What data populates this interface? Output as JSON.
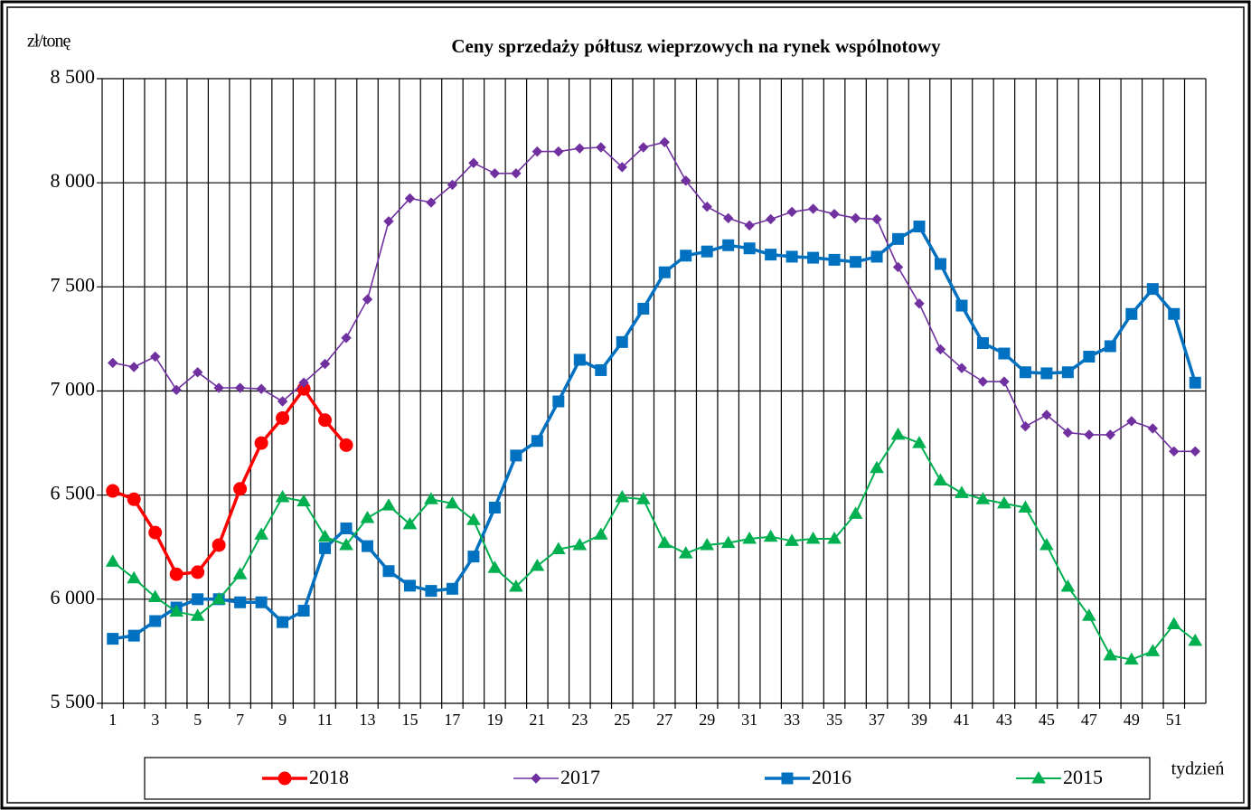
{
  "chart_data": {
    "type": "line",
    "title": "Ceny sprzedaży półtusz wieprzowych  na rynek wspólnotowy",
    "y_label": "zł/tonę",
    "x_label": "tydzień",
    "categories": [
      "1",
      null,
      "3",
      null,
      "5",
      null,
      "7",
      null,
      "9",
      null,
      "11",
      null,
      "13",
      null,
      "15",
      null,
      "17",
      null,
      "19",
      null,
      "21",
      null,
      "23",
      null,
      "25",
      null,
      "27",
      null,
      "29",
      null,
      "31",
      null,
      "33",
      null,
      "35",
      null,
      "37",
      null,
      "39",
      null,
      "41",
      null,
      "43",
      null,
      "45",
      null,
      "47",
      null,
      "49",
      null,
      "51",
      null
    ],
    "ylim": [
      5500,
      8500
    ],
    "yticks": [
      {
        "value": 5500,
        "label": "5 500"
      },
      {
        "value": 6000,
        "label": "6 000"
      },
      {
        "value": 6500,
        "label": "6 500"
      },
      {
        "value": 7000,
        "label": "7 000"
      },
      {
        "value": 7500,
        "label": "7 500"
      },
      {
        "value": 8000,
        "label": "8 000"
      },
      {
        "value": 8500,
        "label": "8 500"
      }
    ],
    "grid": true,
    "legend": "bottom",
    "series": [
      {
        "name": "2018",
        "color": "#ff0000",
        "marker": "circle",
        "values": [
          6520,
          6480,
          6320,
          6120,
          6130,
          6260,
          6530,
          6750,
          6870,
          7010,
          6860,
          6740,
          null,
          null,
          null,
          null,
          null,
          null,
          null,
          null,
          null,
          null,
          null,
          null,
          null,
          null,
          null,
          null,
          null,
          null,
          null,
          null,
          null,
          null,
          null,
          null,
          null,
          null,
          null,
          null,
          null,
          null,
          null,
          null,
          null,
          null,
          null,
          null,
          null,
          null,
          null,
          null
        ]
      },
      {
        "name": "2017",
        "color": "#7030a0",
        "marker": "diamond",
        "values": [
          7135,
          7115,
          7165,
          7005,
          7090,
          7015,
          7015,
          7010,
          6950,
          7040,
          7130,
          7255,
          7440,
          7815,
          7925,
          7905,
          7990,
          8095,
          8045,
          8045,
          8150,
          8150,
          8165,
          8170,
          8075,
          8170,
          8195,
          8010,
          7885,
          7830,
          7795,
          7825,
          7860,
          7875,
          7850,
          7830,
          7825,
          7595,
          7420,
          7200,
          7110,
          7045,
          7045,
          6830,
          6885,
          6800,
          6790,
          6790,
          6855,
          6820,
          6710,
          6710
        ]
      },
      {
        "name": "2016",
        "color": "#0070c0",
        "marker": "square",
        "values": [
          5810,
          5825,
          5895,
          5960,
          6000,
          6000,
          5985,
          5985,
          5890,
          5945,
          6245,
          6340,
          6255,
          6135,
          6065,
          6040,
          6050,
          6205,
          6440,
          6690,
          6760,
          6950,
          7150,
          7100,
          7235,
          7395,
          7570,
          7650,
          7670,
          7700,
          7685,
          7655,
          7645,
          7640,
          7630,
          7620,
          7645,
          7730,
          7790,
          7610,
          7410,
          7230,
          7180,
          7090,
          7085,
          7090,
          7165,
          7215,
          7370,
          7490,
          7370,
          7040
        ]
      },
      {
        "name": "2015",
        "color": "#00b050",
        "marker": "triangle",
        "values": [
          6180,
          6100,
          6010,
          5940,
          5920,
          6000,
          6120,
          6310,
          6490,
          6470,
          6300,
          6260,
          6390,
          6450,
          6360,
          6480,
          6460,
          6380,
          6150,
          6060,
          6160,
          6240,
          6260,
          6310,
          6490,
          6480,
          6270,
          6220,
          6260,
          6270,
          6290,
          6300,
          6280,
          6290,
          6290,
          6410,
          6630,
          6790,
          6750,
          6570,
          6510,
          6480,
          6460,
          6440,
          6260,
          6060,
          5920,
          5730,
          5710,
          5750,
          5880,
          5800
        ]
      }
    ]
  }
}
